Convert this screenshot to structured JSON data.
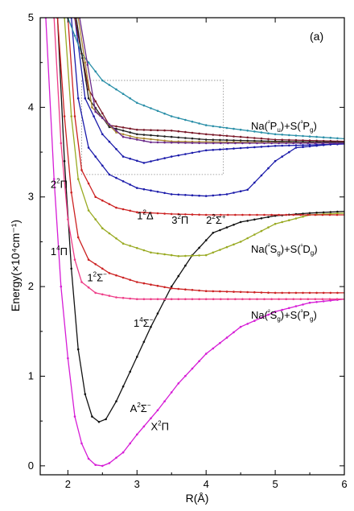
{
  "chart_data": {
    "type": "line",
    "panel_label": "(a)",
    "xlabel": "R(Å)",
    "ylabel": "Energy(×10⁴cm⁻¹)",
    "xlim": [
      1.6,
      6.0
    ],
    "ylim": [
      -0.1,
      5.0
    ],
    "x_ticks": [
      "2",
      "3",
      "4",
      "5",
      "6"
    ],
    "y_ticks": [
      "0",
      "1",
      "2",
      "3",
      "4",
      "5"
    ],
    "inset_box_range": {
      "x": [
        2.2,
        4.25
      ],
      "y": [
        3.25,
        4.3
      ]
    },
    "series": [
      {
        "color": "#d61dd6",
        "points": [
          [
            1.68,
            5.0
          ],
          [
            1.8,
            3.2
          ],
          [
            1.9,
            2.0
          ],
          [
            2.0,
            1.2
          ],
          [
            2.1,
            0.55
          ],
          [
            2.2,
            0.25
          ],
          [
            2.3,
            0.08
          ],
          [
            2.4,
            0.01
          ],
          [
            2.5,
            0.0
          ],
          [
            2.6,
            0.03
          ],
          [
            2.8,
            0.15
          ],
          [
            3.0,
            0.35
          ],
          [
            3.3,
            0.62
          ],
          [
            3.6,
            0.92
          ],
          [
            4.0,
            1.25
          ],
          [
            4.5,
            1.55
          ],
          [
            5.0,
            1.72
          ],
          [
            5.5,
            1.82
          ],
          [
            6.0,
            1.86
          ]
        ]
      },
      {
        "color": "#111111",
        "points": [
          [
            1.85,
            5.0
          ],
          [
            1.95,
            3.4
          ],
          [
            2.05,
            2.2
          ],
          [
            2.15,
            1.3
          ],
          [
            2.25,
            0.8
          ],
          [
            2.35,
            0.55
          ],
          [
            2.45,
            0.49
          ],
          [
            2.55,
            0.52
          ],
          [
            2.7,
            0.72
          ],
          [
            2.9,
            1.05
          ],
          [
            3.2,
            1.55
          ],
          [
            3.5,
            2.0
          ],
          [
            3.8,
            2.35
          ],
          [
            4.1,
            2.6
          ],
          [
            4.5,
            2.72
          ],
          [
            5.0,
            2.79
          ],
          [
            5.5,
            2.82
          ],
          [
            6.0,
            2.84
          ]
        ]
      },
      {
        "color": "#ee3d88",
        "points": [
          [
            1.8,
            5.0
          ],
          [
            1.9,
            3.6
          ],
          [
            2.0,
            2.75
          ],
          [
            2.1,
            2.3
          ],
          [
            2.2,
            2.05
          ],
          [
            2.4,
            1.93
          ],
          [
            2.7,
            1.88
          ],
          [
            3.0,
            1.86
          ],
          [
            4.0,
            1.86
          ],
          [
            6.0,
            1.86
          ]
        ]
      },
      {
        "color": "#cc2222",
        "points": [
          [
            1.85,
            5.0
          ],
          [
            1.95,
            3.9
          ],
          [
            2.05,
            3.05
          ],
          [
            2.15,
            2.55
          ],
          [
            2.3,
            2.3
          ],
          [
            2.6,
            2.15
          ],
          [
            3.0,
            2.05
          ],
          [
            3.5,
            1.98
          ],
          [
            4.0,
            1.95
          ],
          [
            5.0,
            1.93
          ],
          [
            6.0,
            1.93
          ]
        ]
      },
      {
        "color": "#99aa22",
        "points": [
          [
            1.95,
            5.0
          ],
          [
            2.05,
            3.9
          ],
          [
            2.15,
            3.2
          ],
          [
            2.3,
            2.85
          ],
          [
            2.5,
            2.65
          ],
          [
            2.8,
            2.48
          ],
          [
            3.2,
            2.38
          ],
          [
            3.6,
            2.34
          ],
          [
            4.0,
            2.35
          ],
          [
            4.5,
            2.5
          ],
          [
            5.0,
            2.7
          ],
          [
            5.5,
            2.8
          ],
          [
            6.0,
            2.82
          ]
        ]
      },
      {
        "color": "#cc2222",
        "points": [
          [
            2.0,
            5.0
          ],
          [
            2.1,
            3.9
          ],
          [
            2.2,
            3.3
          ],
          [
            2.4,
            3.0
          ],
          [
            2.7,
            2.88
          ],
          [
            3.0,
            2.83
          ],
          [
            3.5,
            2.81
          ],
          [
            4.0,
            2.8
          ],
          [
            6.0,
            2.8
          ]
        ]
      },
      {
        "color": "#1a1aaa",
        "points": [
          [
            2.05,
            5.0
          ],
          [
            2.15,
            4.1
          ],
          [
            2.3,
            3.55
          ],
          [
            2.6,
            3.25
          ],
          [
            3.0,
            3.1
          ],
          [
            3.5,
            3.03
          ],
          [
            4.0,
            3.01
          ],
          [
            4.3,
            3.03
          ],
          [
            4.6,
            3.08
          ],
          [
            5.0,
            3.4
          ],
          [
            5.3,
            3.55
          ],
          [
            6.0,
            3.6
          ]
        ]
      },
      {
        "color": "#1a1aaa",
        "points": [
          [
            2.1,
            5.0
          ],
          [
            2.25,
            4.1
          ],
          [
            2.5,
            3.7
          ],
          [
            2.8,
            3.45
          ],
          [
            3.1,
            3.38
          ],
          [
            3.5,
            3.45
          ],
          [
            4.0,
            3.52
          ],
          [
            5.0,
            3.57
          ],
          [
            6.0,
            3.59
          ]
        ]
      },
      {
        "color": "#2a8fa8",
        "points": [
          [
            2.0,
            5.0
          ],
          [
            2.2,
            4.6
          ],
          [
            2.5,
            4.3
          ],
          [
            3.0,
            4.05
          ],
          [
            3.5,
            3.9
          ],
          [
            4.0,
            3.8
          ],
          [
            5.0,
            3.7
          ],
          [
            6.0,
            3.65
          ]
        ]
      },
      {
        "color": "#7a1a2a",
        "points": [
          [
            2.1,
            5.0
          ],
          [
            2.3,
            4.2
          ],
          [
            2.6,
            3.8
          ],
          [
            3.0,
            3.75
          ],
          [
            3.5,
            3.74
          ],
          [
            4.0,
            3.7
          ],
          [
            5.0,
            3.64
          ],
          [
            6.0,
            3.62
          ]
        ]
      },
      {
        "color": "#222222",
        "points": [
          [
            2.12,
            5.0
          ],
          [
            2.3,
            4.1
          ],
          [
            2.6,
            3.78
          ],
          [
            3.0,
            3.7
          ],
          [
            3.5,
            3.67
          ],
          [
            4.0,
            3.64
          ],
          [
            5.0,
            3.62
          ],
          [
            6.0,
            3.61
          ]
        ]
      },
      {
        "color": "#aa8833",
        "points": [
          [
            2.15,
            5.0
          ],
          [
            2.35,
            4.0
          ],
          [
            2.7,
            3.72
          ],
          [
            3.0,
            3.66
          ],
          [
            3.5,
            3.62
          ],
          [
            4.5,
            3.61
          ],
          [
            6.0,
            3.6
          ]
        ]
      },
      {
        "color": "#6a2a8a",
        "points": [
          [
            2.17,
            5.0
          ],
          [
            2.4,
            3.95
          ],
          [
            2.8,
            3.67
          ],
          [
            3.2,
            3.61
          ],
          [
            4.0,
            3.6
          ],
          [
            6.0,
            3.6
          ]
        ]
      }
    ],
    "annotations": [
      {
        "id": "state-a2sigma",
        "label": "A",
        "sup": "2",
        "tail": "Σ",
        "tail_sup": "−",
        "at": [
          2.9,
          0.6
        ]
      },
      {
        "id": "state-x2pi",
        "label": "X",
        "sup": "2",
        "tail": "Π",
        "at": [
          3.2,
          0.4
        ]
      },
      {
        "id": "state-1-2sigma",
        "label": "1",
        "sup": "2",
        "tail": "Σ",
        "tail_sup": "−",
        "at": [
          2.28,
          2.06
        ]
      },
      {
        "id": "state-1-4sigma",
        "label": "1",
        "sup": "4",
        "tail": "Σ",
        "tail_sup": "−",
        "at": [
          2.95,
          1.55
        ]
      },
      {
        "id": "state-1-4pi",
        "label": "1",
        "sup": "4",
        "tail": "Π",
        "at": [
          1.75,
          2.35
        ]
      },
      {
        "id": "state-2-2pi",
        "label": "2",
        "sup": "2",
        "tail": "Π",
        "at": [
          1.75,
          3.1
        ]
      },
      {
        "id": "state-1-2delta",
        "label": "1",
        "sup": "2",
        "tail": "Δ",
        "at": [
          3.0,
          2.75
        ]
      },
      {
        "id": "state-3-2pi",
        "label": "3",
        "sup": "2",
        "tail": "Π",
        "at": [
          3.5,
          2.7
        ]
      },
      {
        "id": "state-2-2sigma-plus",
        "label": "2",
        "sup": "2",
        "tail": "Σ",
        "tail_sup": "+",
        "at": [
          4.0,
          2.7
        ]
      }
    ],
    "asymptotes": [
      {
        "id": "asym-na2pu-s3pg",
        "text": "Na(²P_u)+S(³P_g)",
        "at": [
          4.65,
          3.75
        ]
      },
      {
        "id": "asym-na2sg-s1dg",
        "text": "Na(²S_g)+S(¹D_g)",
        "at": [
          4.65,
          2.38
        ]
      },
      {
        "id": "asym-na2sg-s3pg",
        "text": "Na(²S_g)+S(³P_g)",
        "at": [
          4.65,
          1.64
        ]
      }
    ]
  }
}
